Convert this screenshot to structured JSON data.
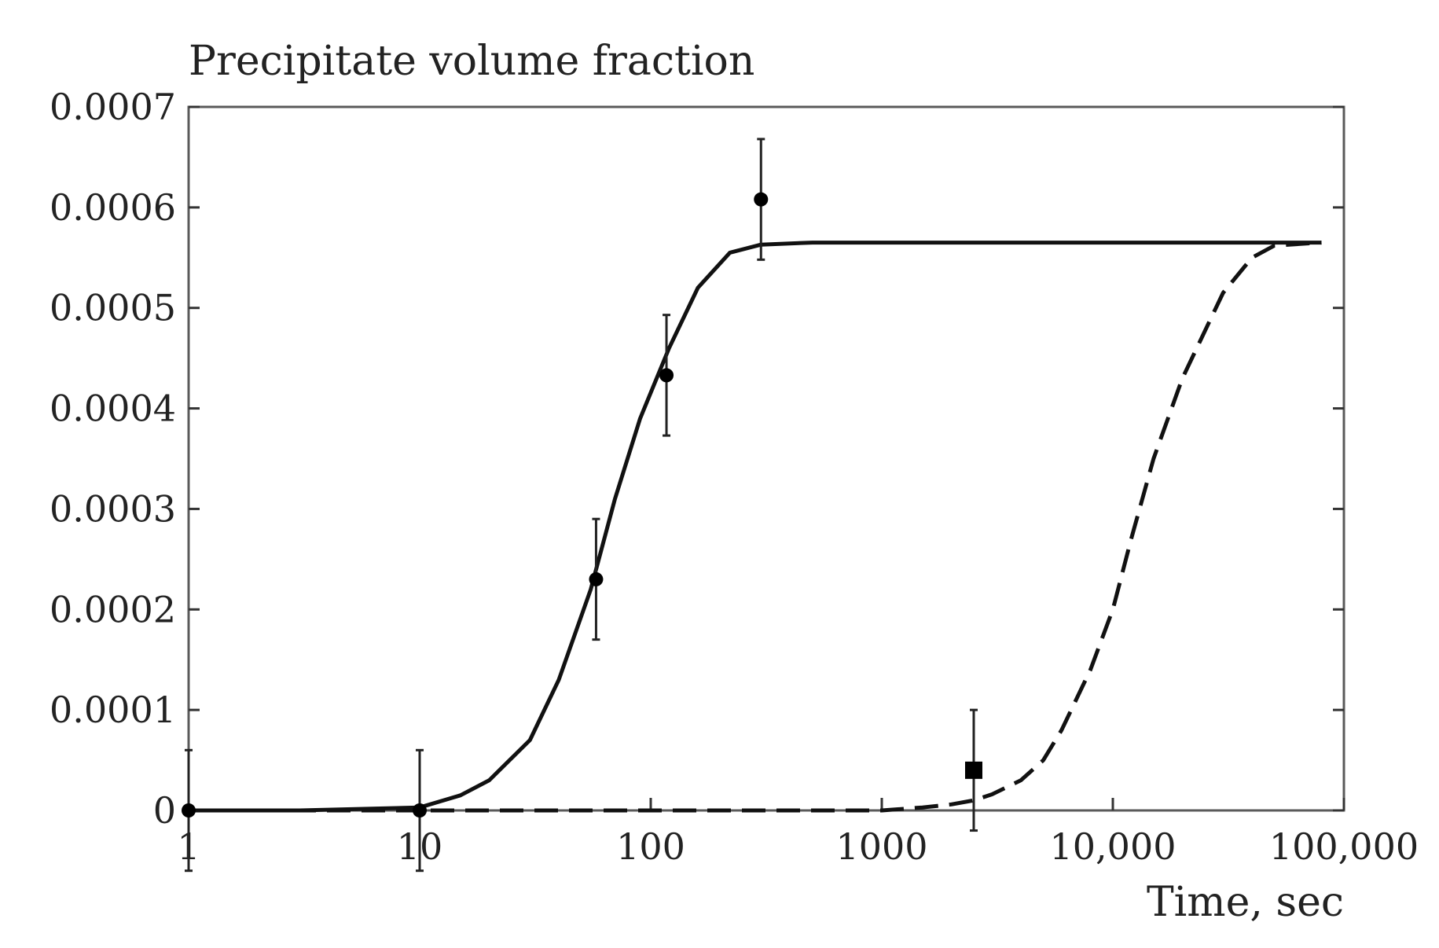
{
  "chart_data": {
    "type": "line",
    "title": "Precipitate volume fraction",
    "xlabel": "Time, sec",
    "ylabel": "",
    "x_scale": "log",
    "xlim": [
      1,
      100000
    ],
    "ylim": [
      0,
      0.0007
    ],
    "grid": false,
    "x_ticks": [
      1,
      10,
      100,
      1000,
      10000,
      100000
    ],
    "x_tick_labels": [
      "1",
      "10",
      "100",
      "1000",
      "10,000",
      "100,000"
    ],
    "y_ticks": [
      0,
      0.0001,
      0.0002,
      0.0003,
      0.0004,
      0.0005,
      0.0006,
      0.0007
    ],
    "y_tick_labels": [
      "0",
      "0.0001",
      "0.0002",
      "0.0003",
      "0.0004",
      "0.0005",
      "0.0006",
      "0.0007"
    ],
    "series": [
      {
        "style": "solid",
        "x": [
          1,
          3,
          10,
          15,
          20,
          30,
          40,
          55,
          70,
          90,
          120,
          160,
          220,
          300,
          500,
          1000,
          10000,
          80000
        ],
        "y": [
          0,
          0,
          3e-06,
          1.5e-05,
          3e-05,
          7e-05,
          0.00013,
          0.00022,
          0.00031,
          0.00039,
          0.00046,
          0.00052,
          0.000555,
          0.000563,
          0.000565,
          0.000565,
          0.000565,
          0.000565
        ]
      },
      {
        "style": "dashed",
        "x": [
          1,
          100,
          1000,
          1500,
          2000,
          2500,
          3000,
          4000,
          5000,
          6000,
          8000,
          10000,
          12000,
          15000,
          20000,
          30000,
          40000,
          50000,
          80000
        ],
        "y": [
          0,
          0,
          0,
          3e-06,
          6e-06,
          1e-05,
          1.6e-05,
          3e-05,
          5e-05,
          8e-05,
          0.00014,
          0.0002,
          0.00027,
          0.00035,
          0.00043,
          0.000515,
          0.00055,
          0.000562,
          0.000565
        ]
      },
      {
        "style": "points-circle",
        "x": [
          1,
          10,
          58,
          117,
          300
        ],
        "y": [
          0,
          0,
          0.00023,
          0.000433,
          0.000608
        ],
        "err": [
          6e-05,
          6e-05,
          6e-05,
          6e-05,
          6e-05
        ]
      },
      {
        "style": "points-square",
        "x": [
          2500
        ],
        "y": [
          4e-05
        ],
        "err": [
          6e-05
        ]
      }
    ]
  }
}
